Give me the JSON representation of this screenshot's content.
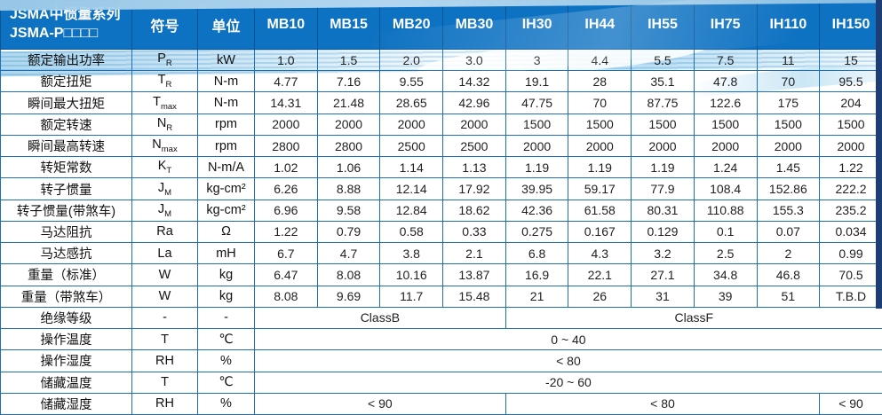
{
  "table": {
    "header": {
      "series_title_line1": "JSMA中惯量系列",
      "series_title_line2": "JSMA-P□□□□",
      "symbol_label": "符号",
      "unit_label": "单位",
      "models": [
        "MB10",
        "MB15",
        "MB20",
        "MB30",
        "IH30",
        "IH44",
        "IH55",
        "IH75",
        "IH110",
        "IH150"
      ]
    },
    "rows": [
      {
        "label": "额定输出功率",
        "symbol": "P",
        "sub": "R",
        "unit": "kW",
        "values": [
          "1.0",
          "1.5",
          "2.0",
          "3.0",
          "3",
          "4.4",
          "5.5",
          "7.5",
          "11",
          "15"
        ]
      },
      {
        "label": "额定扭矩",
        "symbol": "T",
        "sub": "R",
        "unit": "N-m",
        "values": [
          "4.77",
          "7.16",
          "9.55",
          "14.32",
          "19.1",
          "28",
          "35.1",
          "47.8",
          "70",
          "95.5"
        ]
      },
      {
        "label": "瞬间最大扭矩",
        "symbol": "T",
        "sub": "max",
        "unit": "N-m",
        "values": [
          "14.31",
          "21.48",
          "28.65",
          "42.96",
          "47.75",
          "70",
          "87.75",
          "122.6",
          "175",
          "204"
        ]
      },
      {
        "label": "额定转速",
        "symbol": "N",
        "sub": "R",
        "unit": "rpm",
        "values": [
          "2000",
          "2000",
          "2000",
          "2000",
          "1500",
          "1500",
          "1500",
          "1500",
          "1500",
          "1500"
        ]
      },
      {
        "label": "瞬间最高转速",
        "symbol": "N",
        "sub": "max",
        "unit": "rpm",
        "values": [
          "2800",
          "2800",
          "2500",
          "2500",
          "2000",
          "2000",
          "2000",
          "2000",
          "2000",
          "2000"
        ]
      },
      {
        "label": "转矩常数",
        "symbol": "K",
        "sub": "T",
        "unit": "N-m/A",
        "values": [
          "1.02",
          "1.06",
          "1.14",
          "1.13",
          "1.19",
          "1.19",
          "1.19",
          "1.24",
          "1.45",
          "1.22"
        ]
      },
      {
        "label": "转子惯量",
        "symbol": "J",
        "sub": "M",
        "unit": "kg-cm²",
        "values": [
          "6.26",
          "8.88",
          "12.14",
          "17.92",
          "39.95",
          "59.17",
          "77.9",
          "108.4",
          "152.86",
          "222.2"
        ]
      },
      {
        "label": "转子惯量(带煞车)",
        "symbol": "J",
        "sub": "M",
        "unit": "kg-cm²",
        "values": [
          "6.96",
          "9.58",
          "12.84",
          "18.62",
          "42.36",
          "61.58",
          "80.31",
          "110.88",
          "155.3",
          "235.2"
        ]
      },
      {
        "label": "马达阻抗",
        "symbol": "Ra",
        "sub": "",
        "unit": "Ω",
        "values": [
          "1.22",
          "0.79",
          "0.58",
          "0.33",
          "0.275",
          "0.167",
          "0.129",
          "0.1",
          "0.07",
          "0.034"
        ]
      },
      {
        "label": "马达感抗",
        "symbol": "La",
        "sub": "",
        "unit": "mH",
        "values": [
          "6.7",
          "4.7",
          "3.8",
          "2.1",
          "6.8",
          "4.3",
          "3.2",
          "2.5",
          "2",
          "0.99"
        ]
      },
      {
        "label": "重量（标准）",
        "symbol": "W",
        "sub": "",
        "unit": "kg",
        "values": [
          "6.47",
          "8.08",
          "10.16",
          "13.87",
          "16.9",
          "22.1",
          "27.1",
          "34.8",
          "46.8",
          "70.5"
        ]
      },
      {
        "label": "重量（带煞车）",
        "symbol": "W",
        "sub": "",
        "unit": "kg",
        "values": [
          "8.08",
          "9.69",
          "11.7",
          "15.48",
          "21",
          "26",
          "31",
          "39",
          "51",
          "T.B.D"
        ]
      },
      {
        "label": "绝缘等级",
        "symbol": "-",
        "sub": "",
        "unit": "-",
        "spans": [
          {
            "text": "ClassB",
            "cols": 4
          },
          {
            "text": "ClassF",
            "cols": 6
          }
        ]
      },
      {
        "label": "操作温度",
        "symbol": "T",
        "sub": "",
        "unit": "℃",
        "spans": [
          {
            "text": "0 ~ 40",
            "cols": 10
          }
        ]
      },
      {
        "label": "操作湿度",
        "symbol": "RH",
        "sub": "",
        "unit": "%",
        "spans": [
          {
            "text": "< 80",
            "cols": 10
          }
        ]
      },
      {
        "label": "储藏温度",
        "symbol": "T",
        "sub": "",
        "unit": "℃",
        "spans": [
          {
            "text": "-20 ~ 60",
            "cols": 10
          }
        ]
      },
      {
        "label": "储藏湿度",
        "symbol": "RH",
        "sub": "",
        "unit": "%",
        "spans": [
          {
            "text": "< 90",
            "cols": 4
          },
          {
            "text": "< 80",
            "cols": 5
          },
          {
            "text": "< 90",
            "cols": 1
          }
        ]
      }
    ]
  },
  "colors": {
    "header_bg": "#0e72c2",
    "border_blue": "#1e6fb3",
    "right_bar_navy": "#1d3e74",
    "wave_light_blue": "#9ecbe8",
    "header_text": "#ffffff",
    "cell_text": "#1f1f1f"
  }
}
